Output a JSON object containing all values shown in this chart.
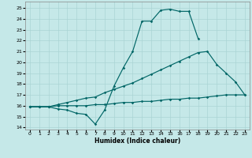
{
  "xlabel": "Humidex (Indice chaleur)",
  "bg_color": "#c5e8e8",
  "line_color": "#006666",
  "grid_color": "#aad4d4",
  "xlim": [
    -0.5,
    23.5
  ],
  "ylim": [
    13.8,
    25.6
  ],
  "yticks": [
    14,
    15,
    16,
    17,
    18,
    19,
    20,
    21,
    22,
    23,
    24,
    25
  ],
  "xticks": [
    0,
    1,
    2,
    3,
    4,
    5,
    6,
    7,
    8,
    9,
    10,
    11,
    12,
    13,
    14,
    15,
    16,
    17,
    18,
    19,
    20,
    21,
    22,
    23
  ],
  "line1_x": [
    0,
    1,
    2,
    3,
    4,
    5,
    6,
    7,
    8,
    9,
    10,
    11,
    12,
    13,
    14,
    15,
    16,
    17,
    18
  ],
  "line1_y": [
    15.9,
    15.9,
    15.9,
    15.7,
    15.6,
    15.3,
    15.2,
    14.3,
    15.6,
    17.8,
    19.5,
    21.0,
    23.8,
    23.8,
    24.8,
    24.9,
    24.7,
    24.7,
    22.2
  ],
  "line2_x": [
    0,
    1,
    2,
    3,
    4,
    5,
    6,
    7,
    8,
    9,
    10,
    11,
    12,
    13,
    14,
    15,
    16,
    17,
    18,
    19,
    20,
    21,
    22,
    23
  ],
  "line2_y": [
    15.9,
    15.9,
    15.9,
    16.1,
    16.3,
    16.5,
    16.7,
    16.8,
    17.2,
    17.5,
    17.8,
    18.1,
    18.5,
    18.9,
    19.3,
    19.7,
    20.1,
    20.5,
    20.9,
    21.0,
    19.8,
    19.0,
    18.2,
    17.0
  ],
  "line3_x": [
    0,
    1,
    2,
    3,
    4,
    5,
    6,
    7,
    8,
    9,
    10,
    11,
    12,
    13,
    14,
    15,
    16,
    17,
    18,
    19,
    20,
    21,
    22,
    23
  ],
  "line3_y": [
    15.9,
    15.9,
    15.9,
    16.0,
    16.0,
    16.0,
    16.0,
    16.1,
    16.1,
    16.2,
    16.3,
    16.3,
    16.4,
    16.4,
    16.5,
    16.6,
    16.6,
    16.7,
    16.7,
    16.8,
    16.9,
    17.0,
    17.0,
    17.0
  ]
}
